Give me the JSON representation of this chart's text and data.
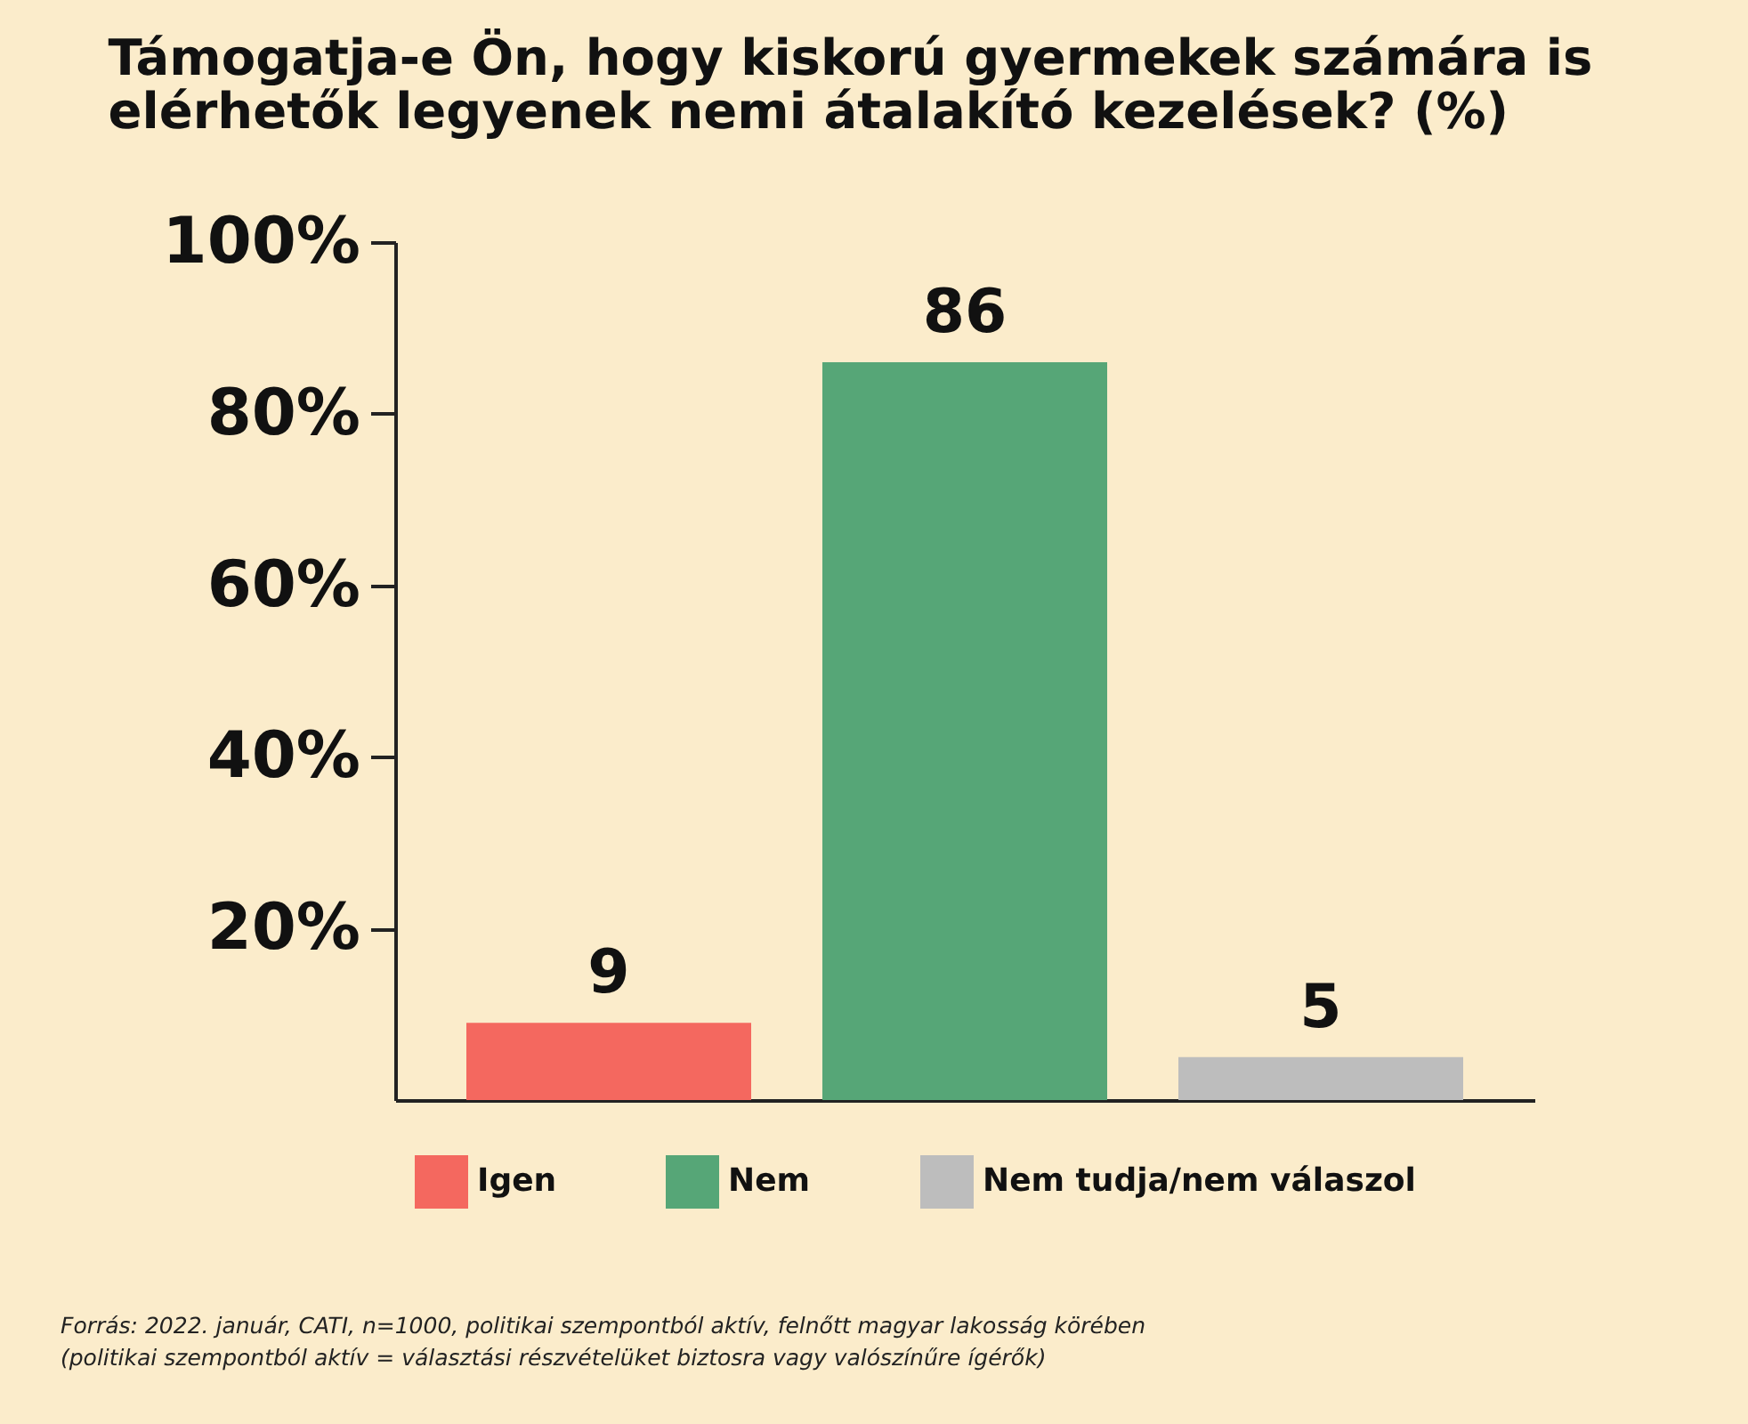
{
  "chart_data": {
    "type": "bar",
    "title": "Támogatja-e Ön, hogy kiskorú gyermekek számára is elérhetők legyenek nemi átalakító kezelések? (%)",
    "categories": [
      null
    ],
    "series": [
      {
        "name": "Igen",
        "color": "#f4685f",
        "values": [
          9
        ]
      },
      {
        "name": "Nem",
        "color": "#56a677",
        "values": [
          86
        ]
      },
      {
        "name": "Nem tudja/nem válaszol",
        "color": "#bdbdbd",
        "values": [
          5
        ]
      }
    ],
    "ylim": [
      0,
      100
    ],
    "yticks": [
      {
        "value": 20,
        "label": "20%"
      },
      {
        "value": 40,
        "label": "40%"
      },
      {
        "value": 60,
        "label": "60%"
      },
      {
        "value": 80,
        "label": "80%"
      },
      {
        "value": 100,
        "label": "100%"
      }
    ],
    "data_labels": true,
    "legend": "bottom",
    "tick_labels": "y",
    "annotations": [
      "Forrás: 2022. január, CATI, n=1000, politikai szempontból aktív, felnőtt magyar lakosság körében",
      "(politikai szempontból aktív = választási részvételüket biztosra vagy valószínűre ígérők)"
    ]
  }
}
